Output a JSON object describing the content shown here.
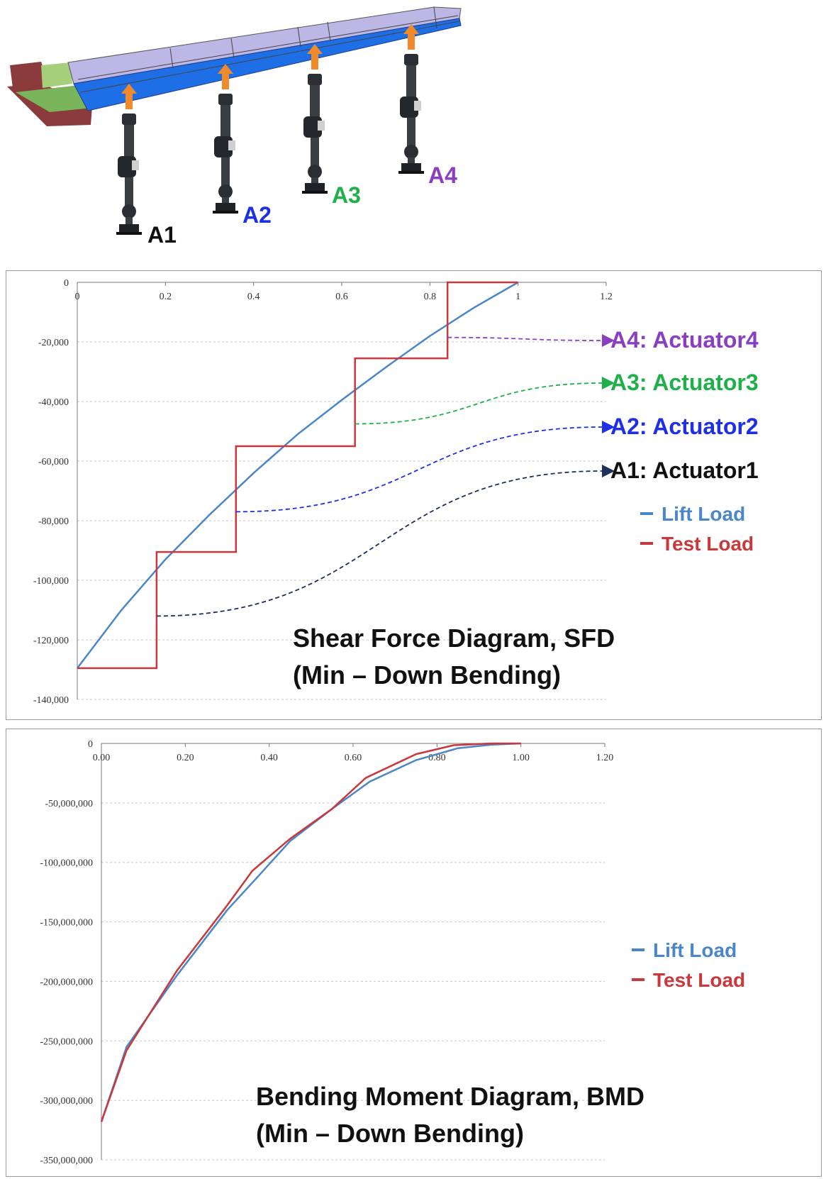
{
  "figure": {
    "actuator_labels": [
      {
        "text": "A1",
        "color": "#111111"
      },
      {
        "text": "A2",
        "color": "#1f2fe6"
      },
      {
        "text": "A3",
        "color": "#1fb04a"
      },
      {
        "text": "A4",
        "color": "#8a3ec0"
      }
    ],
    "arrow_color": "#f08a2a",
    "wing_colors": {
      "top": "#bdb7e6",
      "side": "#1e6fe6",
      "root": "#7ab55c",
      "bracket": "#8b3b3b"
    }
  },
  "chart_data": [
    {
      "type": "line",
      "title": "Shear Force Diagram, SFD",
      "subtitle": "(Min – Down Bending)",
      "xlabel": "",
      "ylabel": "",
      "xlim": [
        0,
        1.2
      ],
      "ylim": [
        -140000,
        0
      ],
      "x_ticks": [
        "0",
        "0.2",
        "0.4",
        "0.6",
        "0.8",
        "1",
        "1.2"
      ],
      "x_tick_values": [
        0,
        0.2,
        0.4,
        0.6,
        0.8,
        1,
        1.2
      ],
      "y_ticks": [
        "0",
        "-20,000",
        "-40,000",
        "-60,000",
        "-80,000",
        "-100,000",
        "-120,000",
        "-140,000"
      ],
      "y_tick_values": [
        0,
        -20000,
        -40000,
        -60000,
        -80000,
        -100000,
        -120000,
        -140000
      ],
      "grid": true,
      "legend_position": "right",
      "series": [
        {
          "name": "Lift Load",
          "color": "#4a86c8",
          "x": [
            0,
            0.1,
            0.2,
            0.3,
            0.4,
            0.5,
            0.6,
            0.7,
            0.8,
            0.9,
            1.0
          ],
          "y": [
            -129500,
            -110000,
            -93000,
            -78000,
            -64000,
            -51000,
            -39500,
            -28500,
            -18000,
            -8500,
            0
          ]
        },
        {
          "name": "Test Load",
          "color": "#c8383c",
          "x": [
            0,
            0.18,
            0.18,
            0.36,
            0.36,
            0.63,
            0.63,
            0.84,
            0.84,
            1.0
          ],
          "y": [
            -129500,
            -129500,
            -90500,
            -90500,
            -55000,
            -55000,
            -25500,
            -25500,
            0,
            0
          ]
        }
      ],
      "annotations": [
        {
          "text": "A4: Actuator4",
          "color": "#8a3ec0",
          "from": [
            0.84,
            -18500
          ]
        },
        {
          "text": "A3: Actuator3",
          "color": "#1fb04a",
          "from": [
            0.63,
            -47500
          ]
        },
        {
          "text": "A2: Actuator2",
          "color": "#1f2fe6",
          "from": [
            0.36,
            -77000
          ]
        },
        {
          "text": "A1: Actuator1",
          "color": "#111111",
          "arrow_color": "#1e2f5c",
          "from": [
            0.18,
            -112000
          ]
        }
      ]
    },
    {
      "type": "line",
      "title": "Bending Moment Diagram, BMD",
      "subtitle": "(Min – Down Bending)",
      "xlabel": "",
      "ylabel": "",
      "xlim": [
        0,
        1.2
      ],
      "ylim": [
        -350000000,
        0
      ],
      "x_ticks": [
        "0.00",
        "0.20",
        "0.40",
        "0.60",
        "0.80",
        "1.00",
        "1.20"
      ],
      "x_tick_values": [
        0,
        0.2,
        0.4,
        0.6,
        0.8,
        1.0,
        1.2
      ],
      "y_ticks": [
        "0",
        "-50,000,000",
        "-100,000,000",
        "-150,000,000",
        "-200,000,000",
        "-250,000,000",
        "-300,000,000",
        "-350,000,000"
      ],
      "y_tick_values": [
        0,
        -50000000,
        -100000000,
        -150000000,
        -200000000,
        -250000000,
        -300000000,
        -350000000
      ],
      "grid": true,
      "legend_position": "right",
      "series": [
        {
          "name": "Lift Load",
          "color": "#4a86c8",
          "x": [
            0,
            0.06,
            0.18,
            0.3,
            0.36,
            0.45,
            0.55,
            0.64,
            0.75,
            0.85,
            0.93,
            1.0
          ],
          "y": [
            -318000000,
            -255000000,
            -195000000,
            -140000000,
            -117000000,
            -82000000,
            -55000000,
            -32000000,
            -14000000,
            -4000000,
            -1000000,
            0
          ]
        },
        {
          "name": "Test Load",
          "color": "#c8383c",
          "x": [
            0,
            0.06,
            0.18,
            0.3,
            0.36,
            0.45,
            0.55,
            0.63,
            0.75,
            0.84,
            0.93,
            1.0
          ],
          "y": [
            -318000000,
            -258000000,
            -191000000,
            -136000000,
            -107000000,
            -80000000,
            -55000000,
            -29000000,
            -9000000,
            -1500000,
            0,
            0
          ]
        }
      ]
    }
  ]
}
